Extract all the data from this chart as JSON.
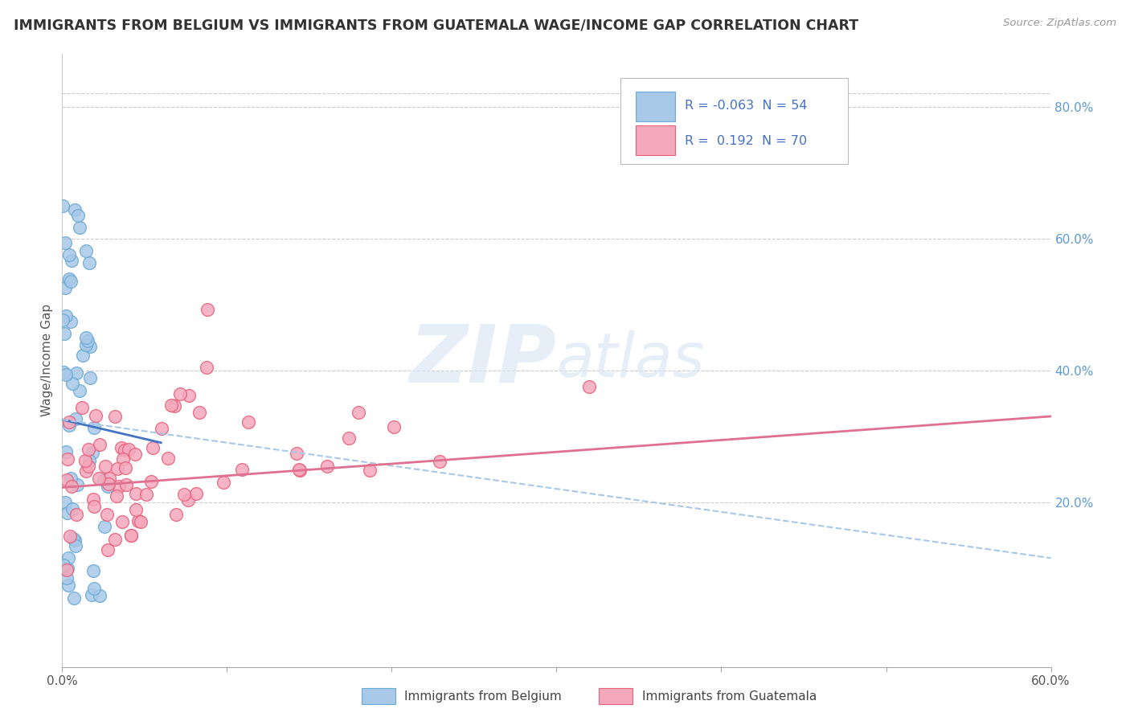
{
  "title": "IMMIGRANTS FROM BELGIUM VS IMMIGRANTS FROM GUATEMALA WAGE/INCOME GAP CORRELATION CHART",
  "source": "Source: ZipAtlas.com",
  "ylabel": "Wage/Income Gap",
  "ylabel_ticks": [
    "20.0%",
    "40.0%",
    "60.0%",
    "80.0%"
  ],
  "ylabel_tick_vals": [
    0.2,
    0.4,
    0.6,
    0.8
  ],
  "xlim": [
    0.0,
    0.6
  ],
  "ylim": [
    -0.05,
    0.88
  ],
  "belgium_color": "#a8c8e8",
  "belgium_edge": "#6aaad4",
  "guatemala_color": "#f4a8bc",
  "guatemala_edge": "#e8607a",
  "belgium_line_color": "#4472c4",
  "guatemala_line_color": "#e07090",
  "dashed_line_color": "#a8c8e8",
  "R_belgium": -0.063,
  "N_belgium": 54,
  "R_guatemala": 0.192,
  "N_guatemala": 70,
  "legend_label_belgium": "Immigrants from Belgium",
  "legend_label_guatemala": "Immigrants from Guatemala",
  "watermark_zip": "ZIP",
  "watermark_atlas": "atlas",
  "background_color": "#ffffff",
  "bel_trend_x0": 0.0,
  "bel_trend_y0": 0.325,
  "bel_trend_x1": 0.06,
  "bel_trend_y1": 0.29,
  "gua_trend_x0": 0.0,
  "gua_trend_y0": 0.222,
  "gua_trend_x1": 0.6,
  "gua_trend_y1": 0.33,
  "dash_trend_x0": 0.0,
  "dash_trend_y0": 0.325,
  "dash_trend_x1": 0.6,
  "dash_trend_y1": 0.115
}
